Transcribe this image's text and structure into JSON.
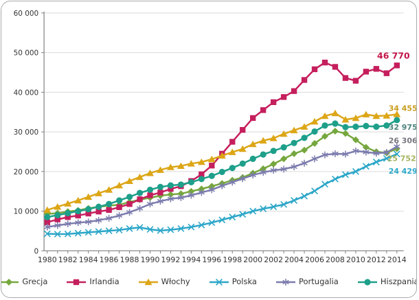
{
  "chart_data": {
    "type": "line",
    "title": "",
    "x": [
      1980,
      1981,
      1982,
      1983,
      1984,
      1985,
      1986,
      1987,
      1988,
      1989,
      1990,
      1991,
      1992,
      1993,
      1994,
      1995,
      1996,
      1997,
      1998,
      1999,
      2000,
      2001,
      2002,
      2003,
      2004,
      2005,
      2006,
      2007,
      2008,
      2009,
      2010,
      2011,
      2012,
      2013,
      2014
    ],
    "series": [
      {
        "name": "Grecja",
        "marker": "diamond",
        "color": "#76a73e",
        "label_color": "#a3b45c",
        "end_label": "25 752",
        "values": [
          9300,
          9500,
          9900,
          10200,
          10700,
          11100,
          11400,
          11600,
          12300,
          12900,
          13400,
          13900,
          14200,
          14400,
          15000,
          15600,
          16300,
          17000,
          17800,
          18500,
          19600,
          20700,
          21900,
          23200,
          24500,
          25400,
          27100,
          28900,
          30200,
          29600,
          28000,
          26100,
          25000,
          24700,
          25752
        ]
      },
      {
        "name": "Irlandia",
        "marker": "square",
        "color": "#c51f5d",
        "label_color": "#c2174a",
        "end_label": "46 770",
        "values": [
          7200,
          7900,
          8500,
          8900,
          9400,
          9900,
          10300,
          11000,
          11800,
          13000,
          14000,
          14700,
          15600,
          16300,
          17600,
          19300,
          21500,
          24500,
          27500,
          30500,
          33500,
          35500,
          37500,
          38800,
          40300,
          43100,
          45800,
          47500,
          46400,
          43600,
          42900,
          45200,
          45900,
          44800,
          46770
        ]
      },
      {
        "name": "Włochy",
        "marker": "triangle",
        "color": "#dca617",
        "label_color": "#c89d1e",
        "end_label": "34 455",
        "values": [
          10300,
          11100,
          11900,
          12700,
          13600,
          14500,
          15400,
          16500,
          17600,
          18600,
          19600,
          20400,
          21100,
          21400,
          22000,
          22400,
          23100,
          24000,
          24900,
          25700,
          26900,
          27800,
          28400,
          29500,
          30400,
          31300,
          32600,
          34000,
          34700,
          33100,
          33500,
          34400,
          34000,
          34100,
          34455
        ]
      },
      {
        "name": "Polska",
        "marker": "x",
        "color": "#2ba6c8",
        "label_color": "#2ba6c8",
        "end_label": "24 429",
        "values": [
          4300,
          4200,
          4250,
          4450,
          4650,
          4850,
          5050,
          5250,
          5600,
          5900,
          5400,
          5100,
          5300,
          5600,
          6000,
          6500,
          7100,
          7800,
          8500,
          9200,
          10000,
          10600,
          11100,
          11700,
          12700,
          13800,
          15100,
          16800,
          18100,
          19200,
          20000,
          21300,
          22400,
          23300,
          24429
        ]
      },
      {
        "name": "Portugalia",
        "marker": "asterisk",
        "color": "#7c7cae",
        "label_color": "#77777f",
        "end_label": "26 306",
        "values": [
          6000,
          6400,
          6800,
          7100,
          7300,
          7700,
          8200,
          8900,
          9700,
          10700,
          11800,
          12500,
          13100,
          13400,
          14000,
          14700,
          15400,
          16400,
          17300,
          18200,
          19100,
          19800,
          20300,
          20600,
          21200,
          22100,
          23200,
          24200,
          24500,
          24400,
          25200,
          24900,
          24600,
          24800,
          26306
        ]
      },
      {
        "name": "Hiszpania",
        "marker": "circle",
        "color": "#1d9f8a",
        "label_color": "#4d837d",
        "end_label": "32 975",
        "values": [
          8500,
          9000,
          9500,
          10000,
          10500,
          11100,
          11800,
          12700,
          13600,
          14600,
          15400,
          16100,
          16500,
          16700,
          17300,
          18100,
          18900,
          19900,
          20900,
          22000,
          23200,
          24300,
          25200,
          26100,
          27200,
          28500,
          30100,
          31600,
          32100,
          31200,
          31300,
          31500,
          31300,
          31600,
          32975
        ]
      }
    ],
    "y_axis": {
      "min": 0,
      "max": 60000,
      "step": 10000,
      "labels": [
        "0",
        "10 000",
        "20 000",
        "30 000",
        "40 000",
        "50 000",
        "60 000"
      ]
    },
    "x_axis": {
      "start": 1980,
      "end": 2014,
      "label_step": 2,
      "labels": [
        "1980",
        "1982",
        "1984",
        "1986",
        "1988",
        "1990",
        "1992",
        "1994",
        "1996",
        "1998",
        "2000",
        "2002",
        "2004",
        "2006",
        "2008",
        "2010",
        "2012",
        "2014"
      ]
    },
    "grid": true,
    "legend_position": "bottom",
    "colors": {
      "grid": "#d9d9d9",
      "axis": "#808080",
      "tick_text": "#333333"
    }
  }
}
